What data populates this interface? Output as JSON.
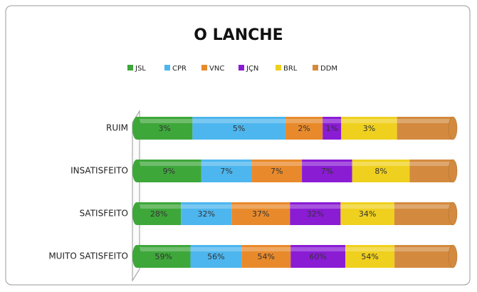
{
  "chart_data": {
    "type": "bar",
    "orientation": "horizontal",
    "stacked": "percent",
    "title": "O LANCHE",
    "categories": [
      "RUIM",
      "INSATISFEITO",
      "SATISFEITO",
      "MUITO SATISFEITO"
    ],
    "series": [
      {
        "name": "JSL",
        "color": "#3ea73a",
        "values": [
          3,
          9,
          28,
          59
        ],
        "value_labels": [
          "3%",
          "9%",
          "28%",
          "59%"
        ]
      },
      {
        "name": "CPR",
        "color": "#4db6ee",
        "values": [
          5,
          7,
          32,
          56
        ],
        "value_labels": [
          "5%",
          "7%",
          "32%",
          "56%"
        ]
      },
      {
        "name": "VNC",
        "color": "#e88a2c",
        "values": [
          2,
          7,
          37,
          54
        ],
        "value_labels": [
          "2%",
          "7%",
          "37%",
          "54%"
        ]
      },
      {
        "name": "JÇN",
        "color": "#8a1cd4",
        "values": [
          1,
          7,
          32,
          60
        ],
        "value_labels": [
          "1%",
          "7%",
          "32%",
          "60%"
        ]
      },
      {
        "name": "BRL",
        "color": "#efd01e",
        "values": [
          3,
          8,
          34,
          54
        ],
        "value_labels": [
          "3%",
          "8%",
          "34%",
          "54%"
        ]
      },
      {
        "name": "DDM",
        "color": "#d38a3e",
        "values": [
          3,
          6,
          37,
          64
        ]
      }
    ],
    "legend": "top"
  }
}
